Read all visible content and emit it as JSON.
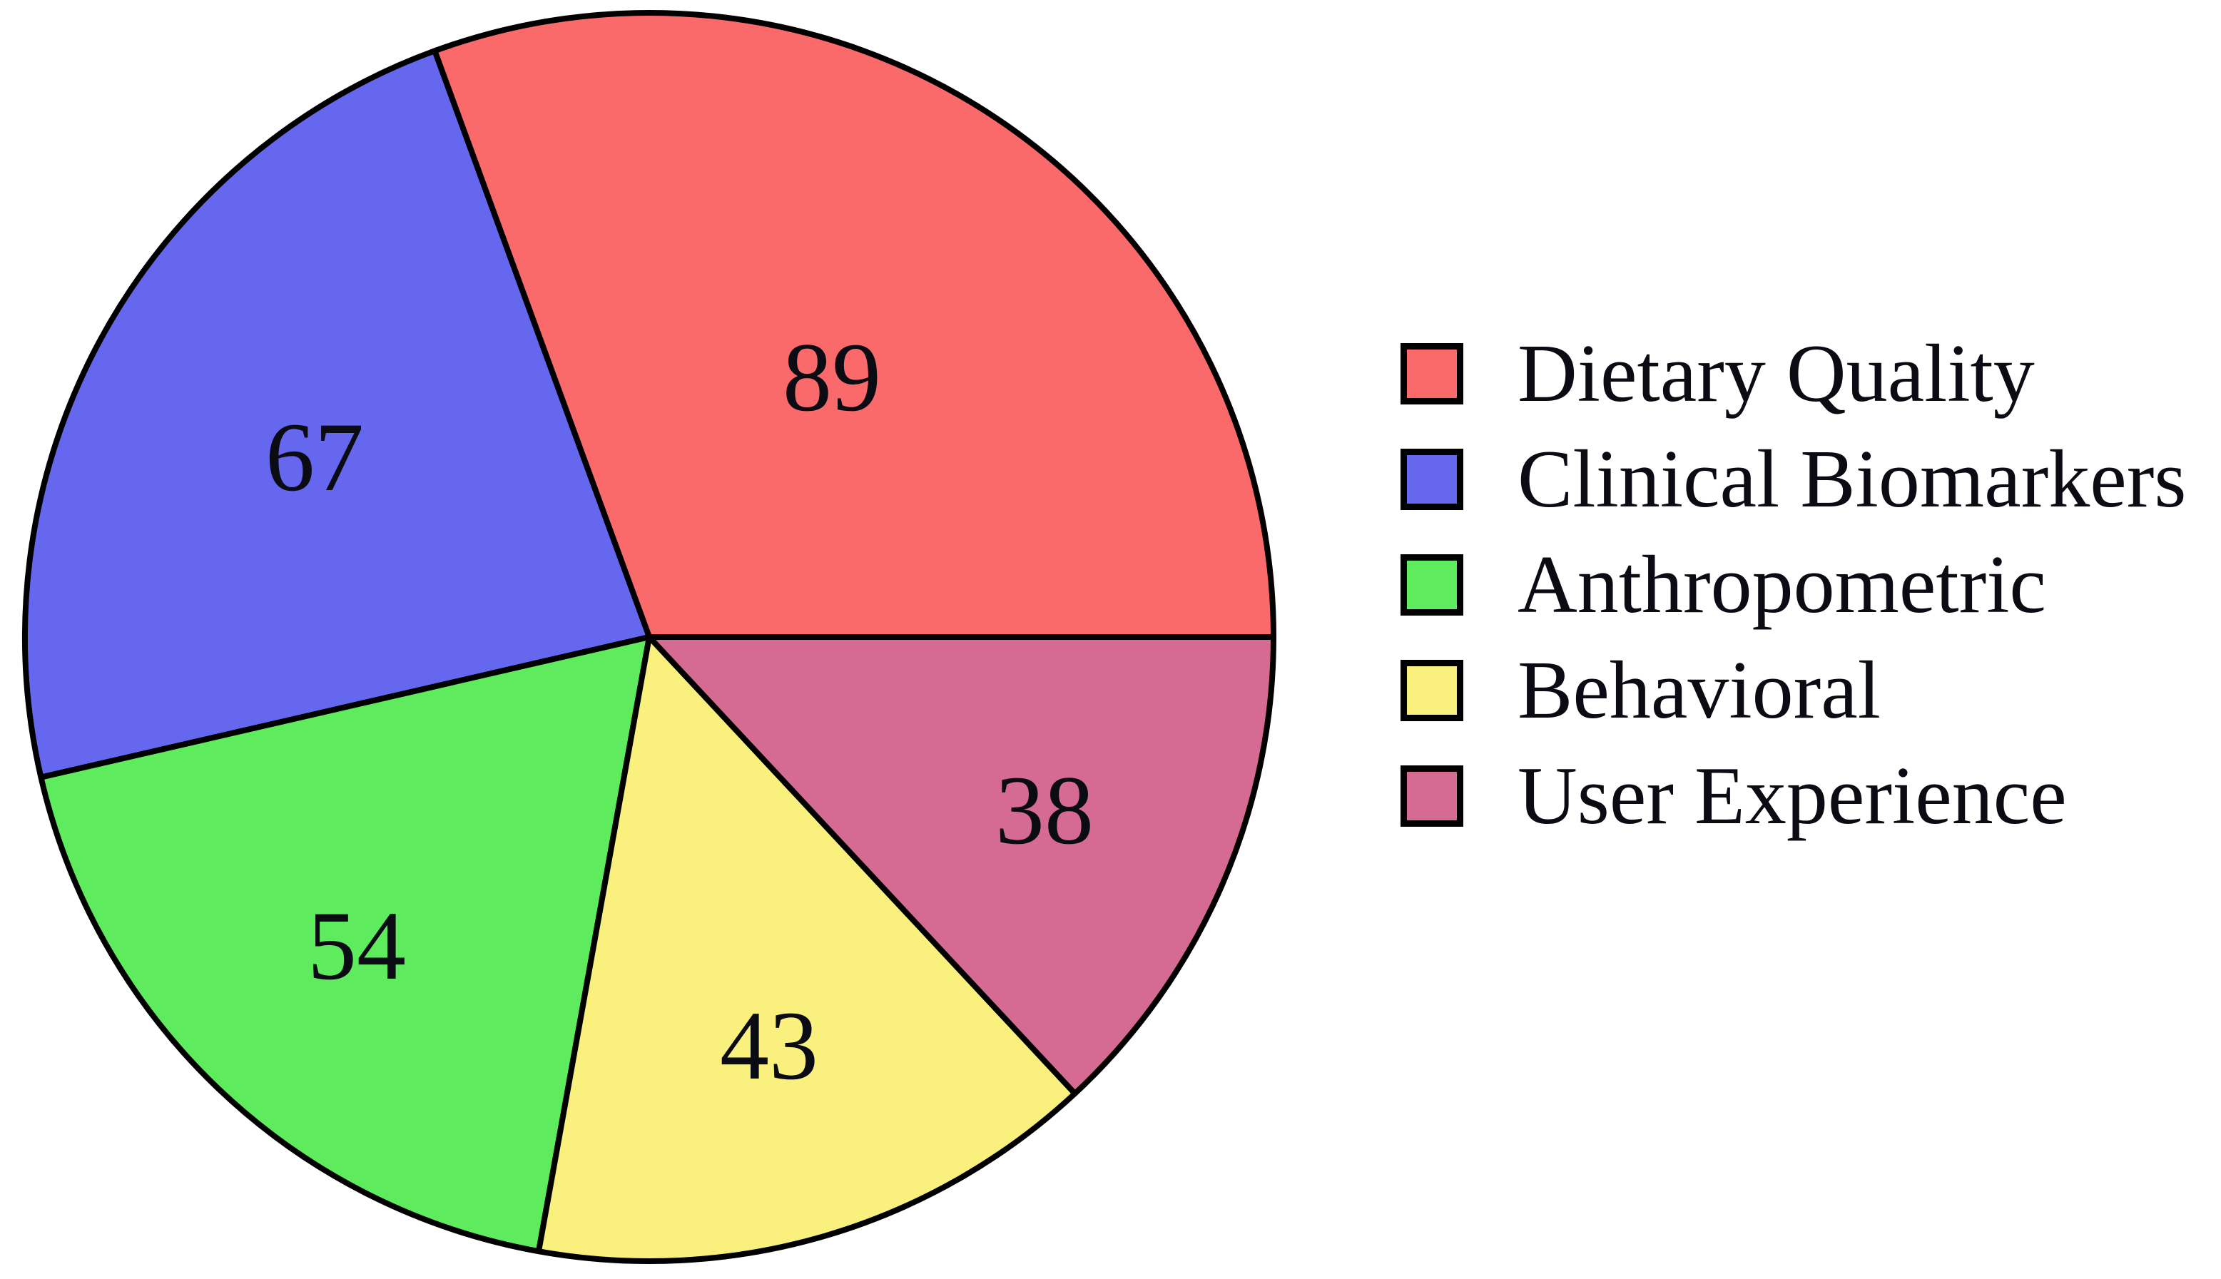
{
  "figure": {
    "kind": "pie-chart-figure",
    "background": "#ffffff"
  },
  "chart_data": {
    "type": "pie",
    "title": "",
    "categories": [
      "Dietary Quality",
      "Clinical Biomarkers",
      "Anthropometric",
      "Behavioral",
      "User Experience"
    ],
    "values": [
      89,
      67,
      54,
      43,
      38
    ],
    "value_labels": [
      "89",
      "67",
      "54",
      "43",
      "38"
    ],
    "total": 291,
    "colors": [
      "#fa6a6a",
      "#6667ef",
      "#5eeb5e",
      "#f9f07e",
      "#d56a92"
    ],
    "slice_border_color": "#000000",
    "label_text_color": "#0b0b14",
    "start_angle_deg": 0,
    "direction": "counterclockwise",
    "labels_inside_slices": true,
    "legend_position": "right",
    "legend_swatch_border_color": "#000000"
  }
}
